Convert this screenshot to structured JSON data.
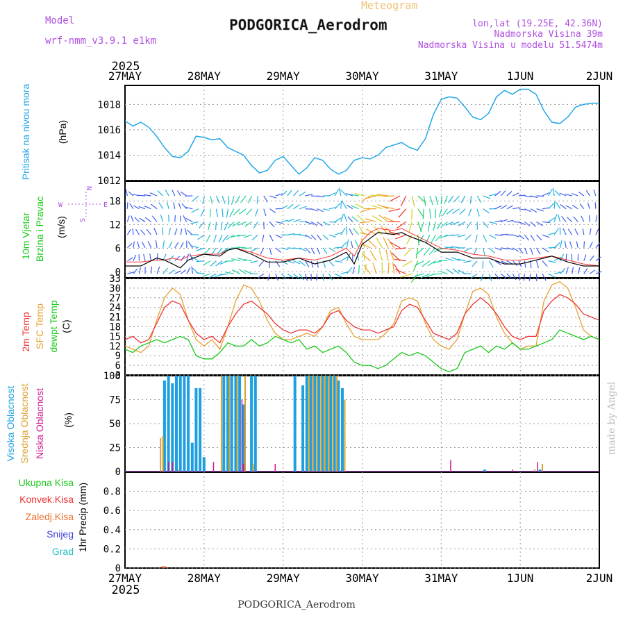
{
  "header": {
    "model_label": "Model",
    "model_name": "wrf-nmm_v3.9.1 e1km",
    "subtitle": "Meteogram",
    "station": "PODGORICA_Aerodrom",
    "lonlat": "lon,lat (19.25E, 42.36N)",
    "elevation": "Nadmorska Visina 39m",
    "model_elevation": "Nadmorska Visina u modelu 51.5474m",
    "watermark": "made by Angel",
    "footer": "PODGORICA_Aerodrom"
  },
  "colors": {
    "pressure": "#22a7e8",
    "temp2m": "#ee3333",
    "sfc": "#e8a030",
    "dew": "#18c818",
    "high_cloud": "#1ea0e0",
    "mid_cloud": "#d8a030",
    "low_cloud": "#d01890",
    "purple": "#b050e0",
    "gust": "#ff3030"
  },
  "x_axis": {
    "year_top": "2025",
    "year_bottom": "2025",
    "ticks": [
      "27MAY",
      "28MAY",
      "29MAY",
      "30MAY",
      "31MAY",
      "1JUN",
      "2JUN"
    ]
  },
  "compass": {
    "n": "N",
    "s": "S",
    "e": "E",
    "w": "W"
  },
  "chart_data": [
    {
      "type": "line",
      "panel": "pressure",
      "ylabels": [
        "Pritisak na nivou mora",
        "(hPa)"
      ],
      "ylim": [
        1012,
        1019.5
      ],
      "yticks": [
        1012,
        1014,
        1016,
        1018
      ],
      "grid": true,
      "series": [
        {
          "name": "Pritisak na nivou mora",
          "x": [
            0,
            0.1,
            0.2,
            0.3,
            0.4,
            0.5,
            0.6,
            0.7,
            0.8,
            0.9,
            1.0,
            1.1,
            1.2,
            1.3,
            1.5,
            1.6,
            1.7,
            1.8,
            1.9,
            2.0,
            2.1,
            2.2,
            2.3,
            2.4,
            2.5,
            2.6,
            2.7,
            2.8,
            2.9,
            3.0,
            3.1,
            3.2,
            3.3,
            3.4,
            3.5,
            3.6,
            3.7,
            3.8,
            3.9,
            4.0,
            4.1,
            4.2,
            4.3,
            4.4,
            4.5,
            4.6,
            4.7,
            4.8,
            4.9,
            5.0,
            5.1,
            5.2,
            5.3,
            5.4,
            5.5,
            5.6,
            5.7,
            5.8,
            5.9,
            6.0
          ],
          "values": [
            1016.7,
            1016.3,
            1016.6,
            1016.2,
            1015.5,
            1014.6,
            1013.9,
            1013.8,
            1014.3,
            1015.5,
            1015.4,
            1015.2,
            1015.3,
            1014.6,
            1014.0,
            1013.2,
            1012.6,
            1012.8,
            1013.6,
            1013.9,
            1013.2,
            1012.5,
            1013.0,
            1013.8,
            1013.6,
            1012.9,
            1012.5,
            1012.8,
            1013.6,
            1013.8,
            1013.7,
            1014.0,
            1014.6,
            1014.8,
            1015.0,
            1014.6,
            1014.4,
            1015.3,
            1017.2,
            1018.4,
            1018.6,
            1018.5,
            1017.8,
            1017.0,
            1016.8,
            1017.3,
            1018.6,
            1019.1,
            1018.8,
            1019.2,
            1019.2,
            1018.8,
            1017.5,
            1016.6,
            1016.5,
            1017.0,
            1017.8,
            1018.0,
            1018.1,
            1018.1
          ]
        }
      ]
    },
    {
      "type": "line",
      "panel": "wind",
      "ylabels": [
        "10m Vjetar",
        "Brzina i Pravac",
        "(m/s)"
      ],
      "ylim": [
        -1.5,
        23
      ],
      "yticks": [
        0,
        6,
        12,
        18
      ],
      "grid": true,
      "series": [
        {
          "name": "10m Vjetar",
          "x": [
            0,
            0.2,
            0.4,
            0.5,
            0.6,
            0.7,
            0.8,
            1.0,
            1.2,
            1.3,
            1.4,
            1.6,
            1.8,
            2.0,
            2.2,
            2.4,
            2.6,
            2.8,
            2.9,
            3.0,
            3.1,
            3.2,
            3.4,
            3.5,
            3.6,
            3.8,
            4.0,
            4.2,
            4.4,
            4.6,
            4.8,
            5.0,
            5.2,
            5.4,
            5.6,
            5.8,
            6.0
          ],
          "values": [
            1.5,
            1.5,
            3.5,
            3,
            2,
            1,
            3,
            4.5,
            4,
            5.5,
            6,
            4.5,
            2.5,
            2.5,
            3.5,
            2,
            3,
            5,
            2,
            7,
            8.5,
            10,
            9.5,
            10,
            9,
            7.5,
            5,
            5,
            3.5,
            3.5,
            2,
            2,
            3,
            4,
            2.5,
            1.5,
            1.5
          ]
        },
        {
          "name": "",
          "x": [
            0,
            0.2,
            0.4,
            0.5,
            0.6,
            0.7,
            0.8,
            1.0,
            1.2,
            1.3,
            1.4,
            1.6,
            1.8,
            2.0,
            2.2,
            2.4,
            2.6,
            2.8,
            2.9,
            3.0,
            3.1,
            3.2,
            3.4,
            3.5,
            3.6,
            3.8,
            4.0,
            4.2,
            4.4,
            4.6,
            4.8,
            5.0,
            5.2,
            5.4,
            5.6,
            5.8,
            6.0
          ],
          "values": [
            2.5,
            2.5,
            3,
            3,
            3.5,
            3,
            4,
            4.5,
            4.5,
            5.5,
            6,
            5,
            3.5,
            3,
            3.5,
            3,
            4,
            6,
            4,
            8,
            10,
            11,
            10.5,
            11,
            10,
            8,
            6,
            5.5,
            4.5,
            4,
            3,
            3,
            3.5,
            4,
            3,
            2,
            1.5
          ]
        }
      ]
    },
    {
      "type": "line",
      "panel": "temperature",
      "ylabels": [
        "2m Temp",
        "SFC Temp",
        "dewpt Temp",
        "(C)"
      ],
      "ylim": [
        3,
        33
      ],
      "yticks": [
        3,
        6,
        9,
        12,
        15,
        18,
        21,
        24,
        27,
        30,
        33
      ],
      "grid": true,
      "series": [
        {
          "name": "2m Temp",
          "x": [
            0,
            0.1,
            0.2,
            0.3,
            0.4,
            0.5,
            0.6,
            0.7,
            0.8,
            0.9,
            1.0,
            1.1,
            1.2,
            1.3,
            1.4,
            1.5,
            1.6,
            1.7,
            1.8,
            1.9,
            2.0,
            2.1,
            2.2,
            2.3,
            2.4,
            2.5,
            2.6,
            2.7,
            2.8,
            2.9,
            3.0,
            3.1,
            3.2,
            3.3,
            3.4,
            3.5,
            3.6,
            3.7,
            3.8,
            3.9,
            4.0,
            4.1,
            4.2,
            4.3,
            4.4,
            4.5,
            4.6,
            4.7,
            4.8,
            4.9,
            5.0,
            5.1,
            5.2,
            5.3,
            5.4,
            5.5,
            5.6,
            5.7,
            5.8,
            5.9,
            6.0
          ],
          "values": [
            14,
            15,
            13,
            14,
            19,
            24,
            26,
            25,
            20,
            16,
            14,
            15,
            13,
            18,
            22,
            25,
            26,
            24,
            22,
            19,
            17,
            16,
            17,
            17,
            16,
            18,
            22,
            23,
            20,
            18,
            17,
            17,
            16,
            17,
            18,
            23,
            25,
            24,
            20,
            16,
            15,
            14,
            16,
            22,
            25,
            27,
            25,
            22,
            18,
            15,
            14,
            15,
            15,
            23,
            26,
            28,
            27,
            25,
            22,
            21,
            20
          ]
        },
        {
          "name": "SFC Temp",
          "x": [
            0,
            0.1,
            0.2,
            0.3,
            0.4,
            0.5,
            0.6,
            0.7,
            0.8,
            0.9,
            1.0,
            1.1,
            1.2,
            1.3,
            1.4,
            1.5,
            1.6,
            1.7,
            1.8,
            1.9,
            2.0,
            2.1,
            2.2,
            2.3,
            2.4,
            2.5,
            2.6,
            2.7,
            2.8,
            2.9,
            3.0,
            3.1,
            3.2,
            3.3,
            3.4,
            3.5,
            3.6,
            3.7,
            3.8,
            3.9,
            4.0,
            4.1,
            4.2,
            4.3,
            4.4,
            4.5,
            4.6,
            4.7,
            4.8,
            4.9,
            5.0,
            5.1,
            5.2,
            5.3,
            5.4,
            5.5,
            5.6,
            5.7,
            5.8,
            5.9,
            6.0
          ],
          "values": [
            12,
            11,
            10,
            12,
            20,
            27,
            30,
            28,
            20,
            14,
            12,
            14,
            11,
            18,
            26,
            31,
            30,
            26,
            20,
            16,
            14,
            14,
            15,
            16,
            15,
            18,
            23,
            24,
            19,
            15,
            14,
            14,
            14,
            16,
            19,
            26,
            27,
            26,
            19,
            14,
            12,
            11,
            14,
            22,
            29,
            30,
            28,
            21,
            16,
            13,
            11,
            12,
            12,
            26,
            31,
            32,
            30,
            24,
            17,
            15,
            14
          ]
        },
        {
          "name": "dewpt Temp",
          "x": [
            0,
            0.1,
            0.2,
            0.3,
            0.4,
            0.5,
            0.6,
            0.7,
            0.8,
            0.9,
            1.0,
            1.1,
            1.2,
            1.3,
            1.4,
            1.5,
            1.6,
            1.7,
            1.8,
            1.9,
            2.0,
            2.1,
            2.2,
            2.3,
            2.4,
            2.5,
            2.6,
            2.7,
            2.8,
            2.9,
            3.0,
            3.1,
            3.2,
            3.3,
            3.4,
            3.5,
            3.6,
            3.7,
            3.8,
            3.9,
            4.0,
            4.1,
            4.2,
            4.3,
            4.4,
            4.5,
            4.6,
            4.7,
            4.8,
            4.9,
            5.0,
            5.1,
            5.2,
            5.3,
            5.4,
            5.5,
            5.6,
            5.7,
            5.8,
            5.9,
            6.0
          ],
          "values": [
            11,
            10,
            12,
            13,
            14,
            13,
            14,
            15,
            14,
            9,
            8,
            8,
            10,
            13,
            12,
            12,
            14,
            12,
            13,
            15,
            14,
            13,
            14,
            11,
            12,
            10,
            11,
            12,
            10,
            7,
            6,
            6,
            5,
            6,
            8,
            10,
            9,
            10,
            9,
            7,
            5,
            4,
            5,
            10,
            11,
            12,
            10,
            12,
            11,
            13,
            11,
            11,
            12,
            13,
            14,
            17,
            16,
            15,
            14,
            15,
            14
          ]
        }
      ]
    },
    {
      "type": "bar",
      "panel": "clouds",
      "ylabels": [
        "Visoka Oblacnost",
        "Srednja Oblacnost",
        "Niska Oblacnost",
        "(%)"
      ],
      "ylim": [
        0,
        100
      ],
      "yticks": [
        0,
        25,
        50,
        75,
        100
      ],
      "grid": true,
      "series": [
        {
          "name": "Visoka Oblacnost",
          "x": [
            0.5,
            0.55,
            0.6,
            0.65,
            0.7,
            0.75,
            0.8,
            0.85,
            0.9,
            0.95,
            1.0,
            1.25,
            1.3,
            1.35,
            1.4,
            1.45,
            1.5,
            1.6,
            1.65,
            2.15,
            2.25,
            2.3,
            2.35,
            2.4,
            2.45,
            2.5,
            2.55,
            2.6,
            2.65,
            2.7,
            2.75,
            4.55,
            5.25
          ],
          "values": [
            95,
            100,
            92,
            100,
            100,
            100,
            100,
            30,
            87,
            87,
            15,
            100,
            100,
            100,
            100,
            100,
            70,
            100,
            100,
            100,
            90,
            100,
            100,
            100,
            100,
            100,
            100,
            100,
            100,
            95,
            87,
            2,
            2
          ]
        },
        {
          "name": "Srednja Oblacnost",
          "x": [
            0.45,
            0.48,
            0.68,
            1.22,
            1.32,
            1.42,
            1.52,
            1.62,
            2.33,
            2.38,
            2.43,
            2.48,
            2.53,
            2.58,
            2.63,
            2.68,
            2.78,
            5.18,
            5.28
          ],
          "values": [
            35,
            37,
            2,
            100,
            100,
            100,
            100,
            8,
            100,
            100,
            100,
            100,
            100,
            100,
            100,
            100,
            75,
            2,
            8
          ]
        },
        {
          "name": "Niska Oblacnost",
          "x": [
            0.55,
            0.6,
            1.12,
            1.48,
            1.5,
            1.9,
            4.12,
            4.9,
            5.22
          ],
          "values": [
            10,
            10,
            10,
            75,
            8,
            8,
            12,
            2,
            10
          ]
        }
      ]
    },
    {
      "type": "bar",
      "panel": "precip",
      "ylabels": [
        "1hr Precip (mm)"
      ],
      "ylim": [
        0,
        1.0
      ],
      "yticks": [
        0,
        0.2,
        0.4,
        0.6,
        0.8
      ],
      "grid": true,
      "series": [
        {
          "name": "Ukupna Kisa",
          "x": [],
          "values": []
        },
        {
          "name": "Konvek.Kisa",
          "x": [
            0.48
          ],
          "values": [
            0.01
          ]
        },
        {
          "name": "Zaledj.Kisa",
          "x": [
            0.5
          ],
          "values": [
            0.01
          ]
        },
        {
          "name": "Snijeg",
          "x": [],
          "values": []
        },
        {
          "name": "Grad",
          "x": [],
          "values": []
        }
      ]
    }
  ]
}
